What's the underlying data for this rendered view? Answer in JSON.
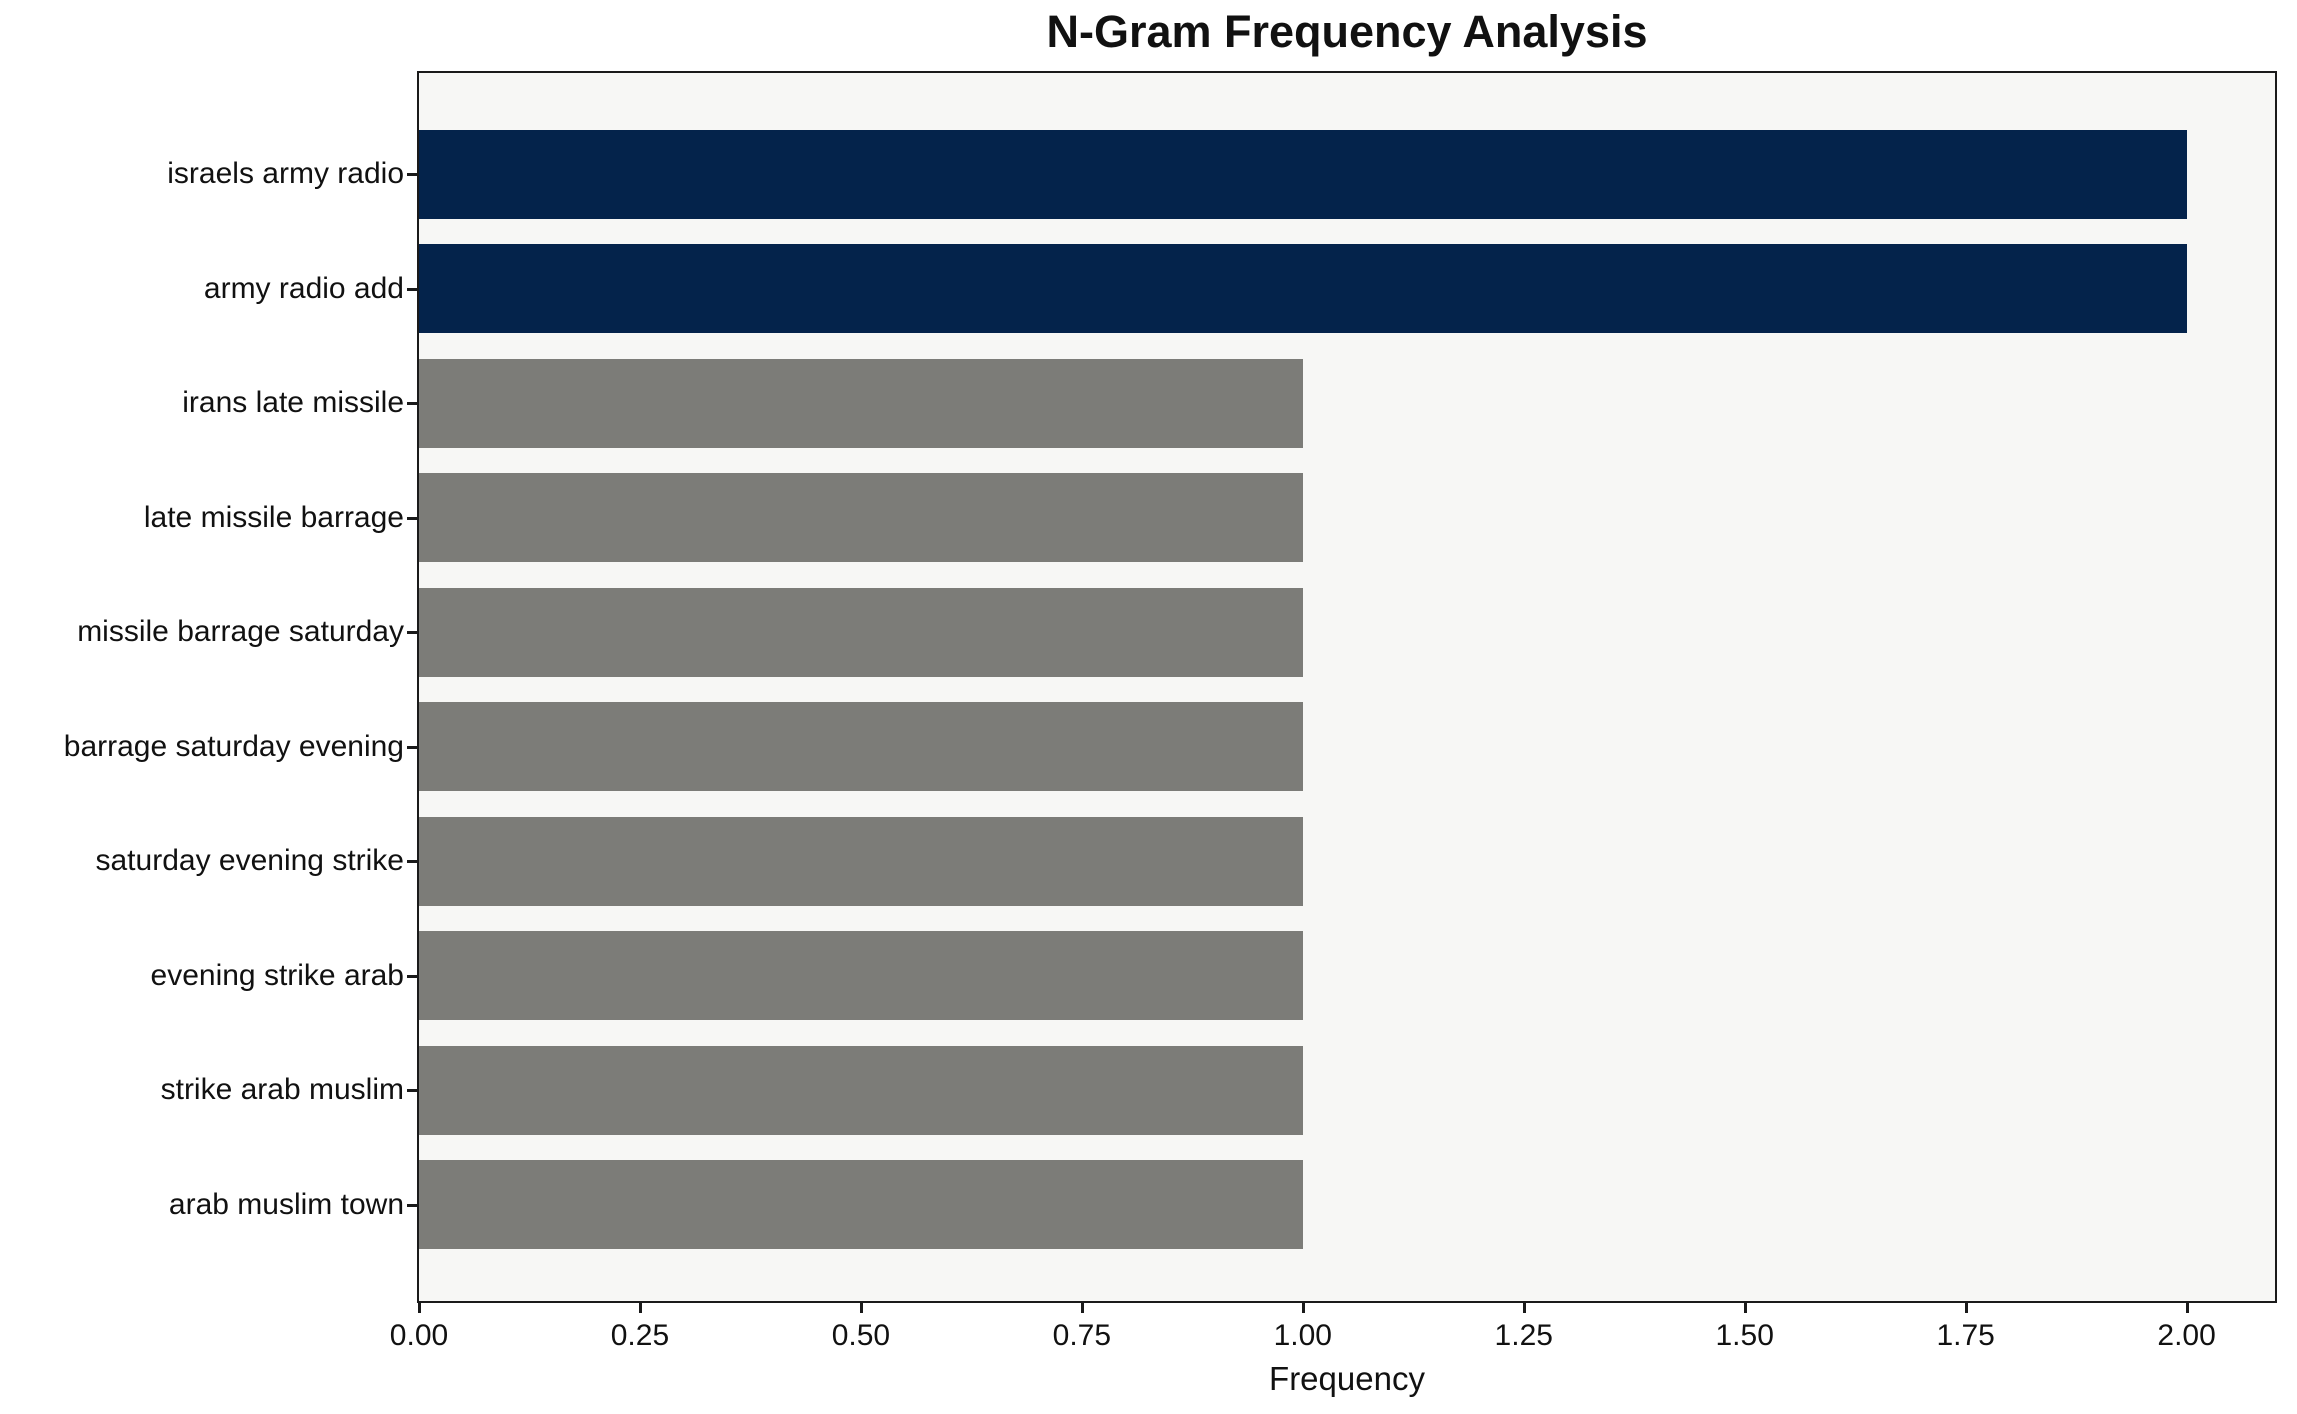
{
  "figure": {
    "background": "#ffffff",
    "plot_background": "#f7f7f5",
    "spine_color": "#1a1a1a",
    "text_color": "#111111"
  },
  "chart_data": {
    "type": "bar",
    "orientation": "horizontal",
    "title": "N-Gram Frequency Analysis",
    "xlabel": "Frequency",
    "ylabel": "",
    "categories": [
      "israels army radio",
      "army radio add",
      "irans late missile",
      "late missile barrage",
      "missile barrage saturday",
      "barrage saturday evening",
      "saturday evening strike",
      "evening strike arab",
      "strike arab muslim",
      "arab muslim town"
    ],
    "values": [
      2,
      2,
      1,
      1,
      1,
      1,
      1,
      1,
      1,
      1
    ],
    "bar_colors": [
      "#04234b",
      "#04234b",
      "#7c7c78",
      "#7c7c78",
      "#7c7c78",
      "#7c7c78",
      "#7c7c78",
      "#7c7c78",
      "#7c7c78",
      "#7c7c78"
    ],
    "highlight_color": "#04234b",
    "default_color": "#7c7c78",
    "xlim": [
      0,
      2.1
    ],
    "xticks": [
      0,
      0.25,
      0.5,
      0.75,
      1.0,
      1.25,
      1.5,
      1.75,
      2.0
    ],
    "xtick_labels": [
      "0.00",
      "0.25",
      "0.50",
      "0.75",
      "1.00",
      "1.25",
      "1.50",
      "1.75",
      "2.00"
    ],
    "grid": false,
    "legend": false
  }
}
